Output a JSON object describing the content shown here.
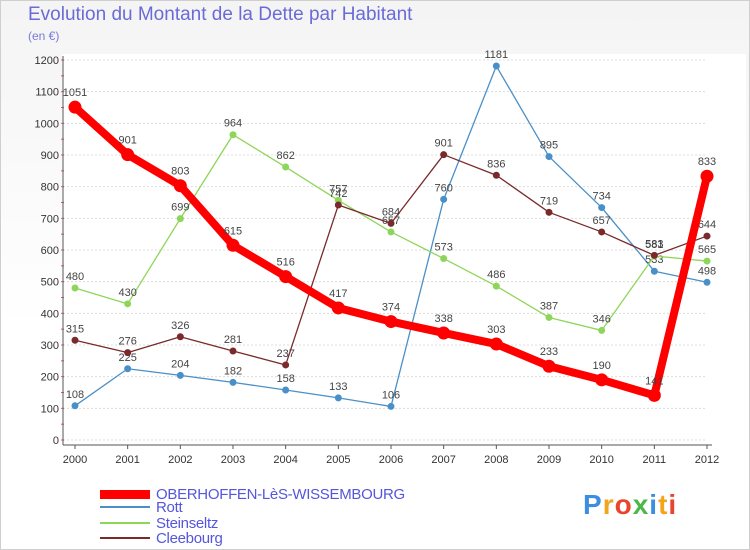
{
  "header": {
    "title": "Evolution du Montant de la Dette par Habitant",
    "subtitle": "(en €)"
  },
  "brand": {
    "text": "Proxiti",
    "colors": [
      "#3b8ee0",
      "#f2a51c",
      "#e8452c",
      "#4cb848",
      "#3b8ee0",
      "#f2a51c",
      "#e8452c"
    ]
  },
  "chart_data": {
    "type": "line",
    "title": "Evolution du Montant de la Dette par Habitant",
    "subtitle": "(en €)",
    "xlabel": "",
    "ylabel": "",
    "ylim": [
      0,
      1200
    ],
    "yticks": [
      0,
      100,
      200,
      300,
      400,
      500,
      600,
      700,
      800,
      900,
      1000,
      1100,
      1200
    ],
    "grid": "horizontal",
    "legend": "bottom-left",
    "x": [
      "2000",
      "2001",
      "2002",
      "2003",
      "2004",
      "2005",
      "2006",
      "2007",
      "2008",
      "2009",
      "2010",
      "2011",
      "2012"
    ],
    "series": [
      {
        "name": "Rott",
        "color": "#4a90c8",
        "values": [
          108,
          225,
          204,
          182,
          158,
          133,
          106,
          760,
          1181,
          895,
          734,
          533,
          498
        ]
      },
      {
        "name": "Steinseltz",
        "color": "#8ed65a",
        "values": [
          480,
          430,
          699,
          964,
          862,
          757,
          657,
          573,
          486,
          387,
          346,
          581,
          565
        ]
      },
      {
        "name": "Cleebourg",
        "color": "#7a2a2a",
        "values": [
          315,
          276,
          326,
          281,
          237,
          742,
          684,
          901,
          836,
          719,
          657,
          583,
          644
        ]
      },
      {
        "name": "OBERHOFFEN-LèS-WISSEMBOURG",
        "color": "#ff0000",
        "values": [
          1051,
          901,
          803,
          615,
          516,
          417,
          374,
          338,
          303,
          233,
          190,
          141,
          833
        ]
      }
    ]
  }
}
